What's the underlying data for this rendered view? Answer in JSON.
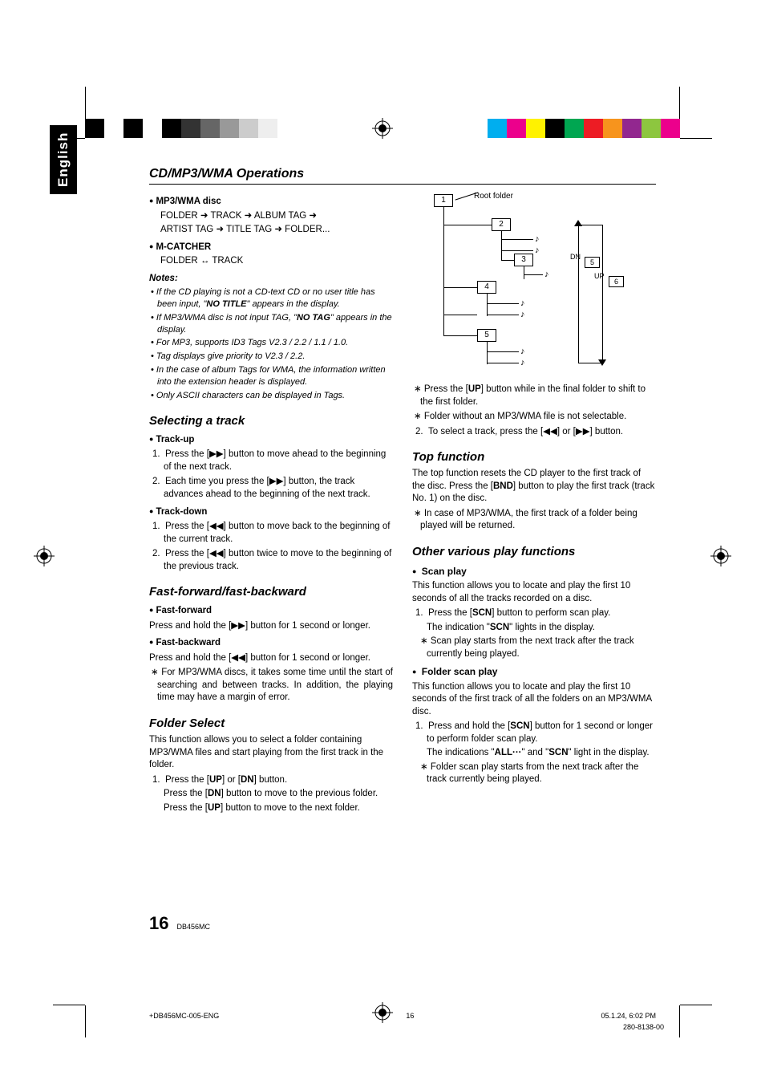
{
  "header_title": "CD/MP3/WMA Operations",
  "lang_tab": "English",
  "colorbar_left": [
    "#000000",
    "#ffffff",
    "#000000",
    "#ffffff",
    "#000000",
    "#333333",
    "#666666",
    "#999999",
    "#cccccc",
    "#eeeeee"
  ],
  "colorbar_right": [
    "#00aeef",
    "#ec008c",
    "#fff200",
    "#000000",
    "#00a651",
    "#ed1c24",
    "#f7941d",
    "#92278f",
    "#8dc63f",
    "#ec008c"
  ],
  "left": {
    "mp3_h": "MP3/WMA disc",
    "mp3_line1": "FOLDER ➜ TRACK ➜ ALBUM TAG ➜",
    "mp3_line2": "ARTIST TAG ➜ TITLE TAG ➜ FOLDER...",
    "mc_h": "M-CATCHER",
    "mc_line": "FOLDER ↔ TRACK",
    "notes_h": "Notes:",
    "notes": [
      "If the CD playing is not a CD-text CD or no user title has been input, \"NO TITLE\" appears in the display.",
      "If MP3/WMA disc is not input TAG, \"NO TAG\" appears in the display.",
      "For MP3, supports ID3 Tags V2.3 / 2.2 / 1.1 / 1.0.",
      "Tag displays give priority to V2.3 / 2.2.",
      "In the case of album Tags for WMA, the information written into the extension header is displayed.",
      "Only ASCII characters can be displayed in Tags."
    ],
    "sel_h": "Selecting a track",
    "trackup_h": "Track-up",
    "trackup_1": "Press the [▶▶] button to move ahead to the beginning of the next track.",
    "trackup_2": "Each time you press the [▶▶] button, the track advances ahead to the beginning of the next track.",
    "trackdown_h": "Track-down",
    "trackdown_1": "Press the [◀◀] button to move back to the beginning of the current track.",
    "trackdown_2": "Press the [◀◀] button twice to move to the beginning of the previous track.",
    "ff_h": "Fast-forward/fast-backward",
    "ffw_h": "Fast-forward",
    "ffw_p": "Press and hold the [▶▶] button for 1 second or longer.",
    "fbw_h": "Fast-backward",
    "fbw_p": "Press and hold the [◀◀] button for 1 second or longer.",
    "ff_note": "For MP3/WMA discs, it takes some time until the start of searching and between tracks. In addition, the playing time may have a margin of error.",
    "folder_h": "Folder Select",
    "folder_p": "This function allows you to select a folder containing MP3/WMA files and start playing from the first track in the folder.",
    "folder_1a": "Press the [UP] or [DN] button.",
    "folder_1b": "Press the [DN] button to move to the previous folder.",
    "folder_1c": "Press the [UP] button to move to the next folder."
  },
  "right": {
    "root_label": "Root folder",
    "dn_label": "DN",
    "up_label": "UP",
    "dn_box": "5",
    "up_box": "6",
    "folder_nums": [
      "1",
      "2",
      "3",
      "4",
      "5"
    ],
    "diag_note1": "Press the [UP] button while in the final folder to shift to the first folder.",
    "diag_note2": "Folder without an MP3/WMA file is not selectable.",
    "step2": "To select a track, press the [◀◀] or [▶▶]  button.",
    "top_h": "Top function",
    "top_p": "The top function resets the CD player to the first track of the disc. Press the [BND] button to play the first track (track No. 1) on the disc.",
    "top_note": "In case of MP3/WMA, the first track of a folder being played will be returned.",
    "other_h": "Other various play functions",
    "scan_h": "Scan play",
    "scan_p": "This function allows you to locate and play the first 10 seconds of all the tracks recorded on a disc.",
    "scan_1a": "Press the [SCN] button to perform scan play.",
    "scan_1b": "The indication \"SCN\" lights in the display.",
    "scan_1c": "Scan play starts from the next track after the track currently being played.",
    "fscan_h": "Folder scan play",
    "fscan_p": "This function allows you to locate and play the first 10 seconds of the first track of all the folders on an MP3/WMA disc.",
    "fscan_1a": "Press and hold the [SCN] button for 1 second or longer to perform folder scan play.",
    "fscan_1b": "The indications \"ALL···\" and \"SCN\" light in the display.",
    "fscan_1c": "Folder scan play starts from the next track after the track currently being played."
  },
  "page_number": "16",
  "model": "DB456MC",
  "footer_file": "+DB456MC-005-ENG",
  "footer_page": "16",
  "footer_date": "05.1.24, 6:02 PM",
  "footer_id": "280-8138-00"
}
